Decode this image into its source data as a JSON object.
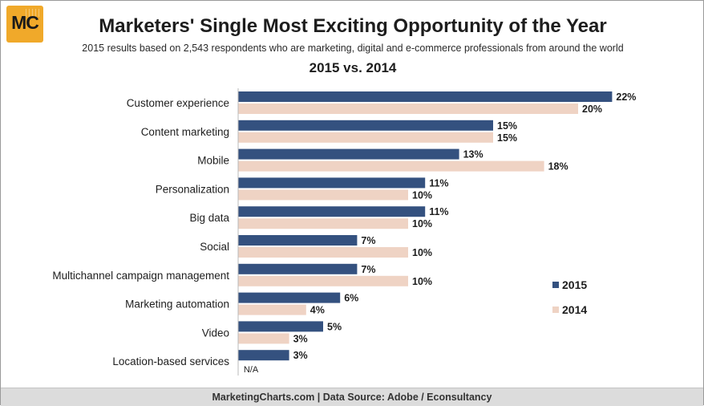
{
  "header": {
    "logo": "MC",
    "title": "Marketers' Single Most Exciting Opportunity of the Year",
    "subtitle": "2015 results based on 2,543 respondents who are marketing, digital and e-commerce professionals from around the world",
    "subtitle2": "2015 vs. 2014"
  },
  "footer": {
    "text": "MarketingCharts.com | Data Source: Adobe / Econsultancy"
  },
  "colors": {
    "series_2015": "#34517f",
    "series_2014": "#efd3c4"
  },
  "chart_data": {
    "type": "bar",
    "orientation": "horizontal",
    "title": "Marketers' Single Most Exciting Opportunity of the Year",
    "categories": [
      "Customer experience",
      "Content marketing",
      "Mobile",
      "Personalization",
      "Big data",
      "Social",
      "Multichannel campaign management",
      "Marketing automation",
      "Video",
      "Location-based services"
    ],
    "series": [
      {
        "name": "2015",
        "values": [
          22,
          15,
          13,
          11,
          11,
          7,
          7,
          6,
          5,
          3
        ]
      },
      {
        "name": "2014",
        "values": [
          20,
          15,
          18,
          10,
          10,
          10,
          10,
          4,
          3,
          null
        ]
      }
    ],
    "value_labels": [
      [
        "22%",
        "15%",
        "13%",
        "11%",
        "11%",
        "7%",
        "7%",
        "6%",
        "5%",
        "3%"
      ],
      [
        "20%",
        "15%",
        "18%",
        "10%",
        "10%",
        "10%",
        "10%",
        "4%",
        "3%",
        "N/A"
      ]
    ],
    "unit": "%",
    "xlim": [
      0,
      22
    ],
    "legend_position": "right",
    "grid": false
  }
}
